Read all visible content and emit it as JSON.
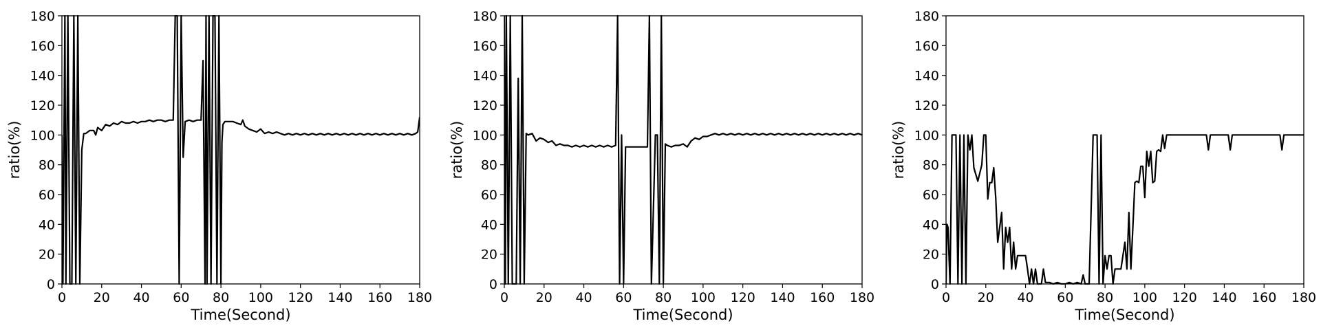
{
  "chart_data": [
    {
      "type": "line",
      "xlabel": "Time(Second)",
      "ylabel": "ratio(%)",
      "xlim": [
        0,
        180
      ],
      "ylim": [
        0,
        180
      ],
      "xticks": [
        "0",
        "20",
        "40",
        "60",
        "80",
        "100",
        "120",
        "140",
        "160",
        "180"
      ],
      "yticks": [
        "0",
        "20",
        "40",
        "60",
        "80",
        "100",
        "120",
        "140",
        "160",
        "180"
      ],
      "grid": false,
      "color": "#000000",
      "x": [
        0,
        0.5,
        1.5,
        2,
        3,
        4,
        5,
        6,
        7,
        8,
        9,
        10,
        11,
        12,
        14,
        16,
        17,
        18,
        20,
        22,
        24,
        26,
        28,
        30,
        32,
        34,
        36,
        38,
        40,
        42,
        44,
        46,
        48,
        50,
        52,
        54,
        56,
        57,
        58,
        59,
        60,
        61,
        62,
        64,
        66,
        68,
        70,
        71,
        72,
        72.5,
        73,
        74,
        75,
        76,
        77,
        78,
        79,
        80,
        80.5,
        81,
        82,
        84,
        86,
        88,
        90,
        91,
        92,
        94,
        96,
        98,
        100,
        102,
        104,
        106,
        108,
        110,
        112,
        114,
        116,
        118,
        120,
        122,
        124,
        126,
        128,
        130,
        132,
        134,
        136,
        138,
        140,
        142,
        144,
        146,
        148,
        150,
        152,
        154,
        156,
        158,
        160,
        162,
        164,
        166,
        168,
        170,
        172,
        174,
        176,
        178,
        179,
        180
      ],
      "y": [
        100,
        0,
        180,
        0,
        180,
        0,
        0,
        180,
        0,
        180,
        0,
        90,
        101,
        101,
        103,
        103,
        100,
        105,
        103,
        107,
        106,
        108,
        107,
        109,
        108,
        108,
        109,
        108,
        109,
        109,
        110,
        109,
        110,
        110,
        109,
        110,
        110,
        180,
        180,
        0,
        180,
        85,
        109,
        110,
        109,
        110,
        110,
        150,
        0,
        180,
        0,
        180,
        0,
        180,
        180,
        0,
        180,
        0,
        95,
        107,
        109,
        109,
        109,
        108,
        107,
        110,
        106,
        104,
        103,
        102,
        104,
        101,
        102,
        101,
        102,
        101,
        100,
        101,
        100,
        101,
        100,
        101,
        100,
        101,
        100,
        101,
        100,
        101,
        100,
        101,
        100,
        101,
        100,
        101,
        100,
        101,
        100,
        101,
        100,
        101,
        100,
        101,
        100,
        101,
        100,
        101,
        100,
        101,
        100,
        101,
        102,
        112
      ]
    },
    {
      "type": "line",
      "xlabel": "Time(Second)",
      "ylabel": "ratio(%)",
      "xlim": [
        0,
        180
      ],
      "ylim": [
        0,
        180
      ],
      "xticks": [
        "0",
        "20",
        "40",
        "60",
        "80",
        "100",
        "120",
        "140",
        "160",
        "180"
      ],
      "yticks": [
        "0",
        "20",
        "40",
        "60",
        "80",
        "100",
        "120",
        "140",
        "160",
        "180"
      ],
      "grid": false,
      "color": "#000000",
      "x": [
        0,
        0.5,
        1,
        2,
        3,
        4,
        5,
        6,
        7,
        8,
        9,
        10,
        11,
        12,
        14,
        16,
        18,
        20,
        22,
        24,
        26,
        28,
        30,
        32,
        34,
        36,
        38,
        40,
        42,
        44,
        46,
        48,
        50,
        52,
        54,
        56,
        57,
        58,
        59,
        60,
        61,
        62,
        64,
        66,
        68,
        70,
        72,
        73,
        74,
        76,
        77,
        78,
        79,
        80,
        81,
        82,
        84,
        86,
        88,
        90,
        92,
        94,
        96,
        98,
        100,
        102,
        104,
        106,
        108,
        110,
        112,
        114,
        116,
        118,
        120,
        122,
        124,
        126,
        128,
        130,
        132,
        134,
        136,
        138,
        140,
        142,
        144,
        146,
        148,
        150,
        152,
        154,
        156,
        158,
        160,
        162,
        164,
        166,
        168,
        170,
        172,
        174,
        176,
        178,
        180
      ],
      "y": [
        180,
        0,
        180,
        0,
        180,
        0,
        0,
        0,
        138,
        0,
        180,
        0,
        101,
        100,
        101,
        96,
        98,
        97,
        95,
        96,
        93,
        94,
        93,
        93,
        92,
        93,
        92,
        93,
        92,
        93,
        92,
        93,
        92,
        93,
        92,
        93,
        180,
        0,
        100,
        0,
        92,
        92,
        92,
        92,
        92,
        92,
        92,
        180,
        0,
        100,
        100,
        0,
        180,
        0,
        94,
        93,
        92,
        93,
        93,
        94,
        92,
        96,
        98,
        97,
        99,
        99,
        100,
        101,
        100,
        101,
        100,
        101,
        100,
        101,
        100,
        101,
        100,
        101,
        100,
        101,
        100,
        101,
        100,
        101,
        100,
        101,
        100,
        101,
        100,
        101,
        100,
        101,
        100,
        101,
        100,
        101,
        100,
        101,
        100,
        101,
        100,
        101,
        100,
        101,
        100
      ]
    },
    {
      "type": "line",
      "xlabel": "Time(Second)",
      "ylabel": "ratio(%)",
      "xlim": [
        0,
        180
      ],
      "ylim": [
        0,
        180
      ],
      "xticks": [
        "0",
        "20",
        "40",
        "60",
        "80",
        "100",
        "120",
        "140",
        "160",
        "180"
      ],
      "yticks": [
        "0",
        "20",
        "40",
        "60",
        "80",
        "100",
        "120",
        "140",
        "160",
        "180"
      ],
      "grid": false,
      "color": "#000000",
      "x": [
        0,
        0.5,
        1,
        2,
        3,
        4,
        5,
        6,
        7,
        8,
        9,
        10,
        11,
        12,
        13,
        14,
        16,
        18,
        19,
        20,
        21,
        22,
        23,
        24,
        25,
        26,
        27,
        28,
        29,
        30,
        31,
        32,
        33,
        34,
        35,
        36,
        38,
        40,
        41,
        42,
        43,
        44,
        45,
        46,
        47,
        48,
        49,
        50,
        52,
        54,
        56,
        58,
        60,
        62,
        64,
        66,
        68,
        69,
        70,
        72,
        74,
        75,
        76,
        77,
        78,
        79,
        80,
        81,
        82,
        83,
        84,
        85,
        86,
        88,
        90,
        91,
        92,
        93,
        94,
        95,
        96,
        97,
        98,
        99,
        100,
        101,
        102,
        103,
        104,
        105,
        106,
        107,
        108,
        109,
        110,
        111,
        112,
        114,
        116,
        118,
        120,
        124,
        128,
        131,
        132,
        133,
        134,
        136,
        140,
        142,
        143,
        144,
        146,
        150,
        160,
        168,
        169,
        170,
        171,
        172,
        176,
        180
      ],
      "y": [
        0,
        40,
        38,
        0,
        100,
        100,
        100,
        0,
        100,
        0,
        100,
        0,
        100,
        90,
        100,
        78,
        69,
        80,
        100,
        100,
        57,
        68,
        68,
        78,
        58,
        28,
        38,
        48,
        10,
        38,
        28,
        38,
        10,
        28,
        10,
        19,
        19,
        19,
        10,
        0,
        10,
        0,
        10,
        0,
        0,
        0,
        10,
        1,
        1,
        0,
        1,
        0,
        0,
        1,
        0,
        1,
        0,
        6,
        0,
        0,
        100,
        100,
        100,
        0,
        100,
        0,
        19,
        10,
        19,
        19,
        0,
        10,
        10,
        10,
        28,
        10,
        48,
        10,
        38,
        68,
        69,
        68,
        79,
        79,
        58,
        89,
        79,
        89,
        68,
        69,
        89,
        90,
        89,
        100,
        91,
        100,
        100,
        100,
        100,
        100,
        100,
        100,
        100,
        100,
        90,
        100,
        100,
        100,
        100,
        100,
        90,
        100,
        100,
        100,
        100,
        100,
        90,
        100,
        100,
        100,
        100,
        100
      ]
    }
  ]
}
